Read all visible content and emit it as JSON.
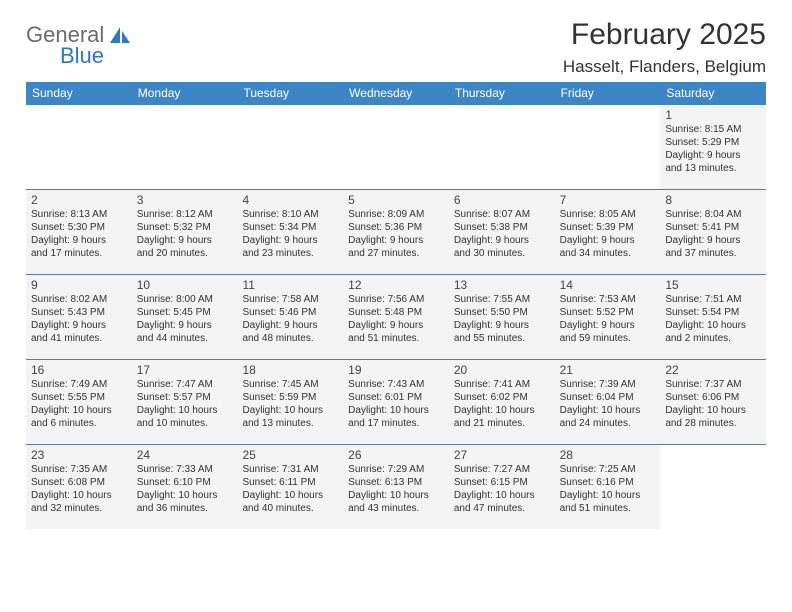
{
  "logo": {
    "part1": "General",
    "part2": "Blue",
    "gray": "#6b6b6b",
    "blue": "#2f78c4"
  },
  "title": "February 2025",
  "location": "Hasselt, Flanders, Belgium",
  "header_bg": "#3d86c6",
  "cell_bg": "#f3f3f3",
  "divider_color": "#5a7a9a",
  "page_bg": "#ffffff",
  "text_color": "#333333",
  "weekdays": [
    "Sunday",
    "Monday",
    "Tuesday",
    "Wednesday",
    "Thursday",
    "Friday",
    "Saturday"
  ],
  "weeks": [
    [
      null,
      null,
      null,
      null,
      null,
      null,
      {
        "n": "1",
        "sunrise": "Sunrise: 8:15 AM",
        "sunset": "Sunset: 5:29 PM",
        "dl1": "Daylight: 9 hours",
        "dl2": "and 13 minutes."
      }
    ],
    [
      {
        "n": "2",
        "sunrise": "Sunrise: 8:13 AM",
        "sunset": "Sunset: 5:30 PM",
        "dl1": "Daylight: 9 hours",
        "dl2": "and 17 minutes."
      },
      {
        "n": "3",
        "sunrise": "Sunrise: 8:12 AM",
        "sunset": "Sunset: 5:32 PM",
        "dl1": "Daylight: 9 hours",
        "dl2": "and 20 minutes."
      },
      {
        "n": "4",
        "sunrise": "Sunrise: 8:10 AM",
        "sunset": "Sunset: 5:34 PM",
        "dl1": "Daylight: 9 hours",
        "dl2": "and 23 minutes."
      },
      {
        "n": "5",
        "sunrise": "Sunrise: 8:09 AM",
        "sunset": "Sunset: 5:36 PM",
        "dl1": "Daylight: 9 hours",
        "dl2": "and 27 minutes."
      },
      {
        "n": "6",
        "sunrise": "Sunrise: 8:07 AM",
        "sunset": "Sunset: 5:38 PM",
        "dl1": "Daylight: 9 hours",
        "dl2": "and 30 minutes."
      },
      {
        "n": "7",
        "sunrise": "Sunrise: 8:05 AM",
        "sunset": "Sunset: 5:39 PM",
        "dl1": "Daylight: 9 hours",
        "dl2": "and 34 minutes."
      },
      {
        "n": "8",
        "sunrise": "Sunrise: 8:04 AM",
        "sunset": "Sunset: 5:41 PM",
        "dl1": "Daylight: 9 hours",
        "dl2": "and 37 minutes."
      }
    ],
    [
      {
        "n": "9",
        "sunrise": "Sunrise: 8:02 AM",
        "sunset": "Sunset: 5:43 PM",
        "dl1": "Daylight: 9 hours",
        "dl2": "and 41 minutes."
      },
      {
        "n": "10",
        "sunrise": "Sunrise: 8:00 AM",
        "sunset": "Sunset: 5:45 PM",
        "dl1": "Daylight: 9 hours",
        "dl2": "and 44 minutes."
      },
      {
        "n": "11",
        "sunrise": "Sunrise: 7:58 AM",
        "sunset": "Sunset: 5:46 PM",
        "dl1": "Daylight: 9 hours",
        "dl2": "and 48 minutes."
      },
      {
        "n": "12",
        "sunrise": "Sunrise: 7:56 AM",
        "sunset": "Sunset: 5:48 PM",
        "dl1": "Daylight: 9 hours",
        "dl2": "and 51 minutes."
      },
      {
        "n": "13",
        "sunrise": "Sunrise: 7:55 AM",
        "sunset": "Sunset: 5:50 PM",
        "dl1": "Daylight: 9 hours",
        "dl2": "and 55 minutes."
      },
      {
        "n": "14",
        "sunrise": "Sunrise: 7:53 AM",
        "sunset": "Sunset: 5:52 PM",
        "dl1": "Daylight: 9 hours",
        "dl2": "and 59 minutes."
      },
      {
        "n": "15",
        "sunrise": "Sunrise: 7:51 AM",
        "sunset": "Sunset: 5:54 PM",
        "dl1": "Daylight: 10 hours",
        "dl2": "and 2 minutes."
      }
    ],
    [
      {
        "n": "16",
        "sunrise": "Sunrise: 7:49 AM",
        "sunset": "Sunset: 5:55 PM",
        "dl1": "Daylight: 10 hours",
        "dl2": "and 6 minutes."
      },
      {
        "n": "17",
        "sunrise": "Sunrise: 7:47 AM",
        "sunset": "Sunset: 5:57 PM",
        "dl1": "Daylight: 10 hours",
        "dl2": "and 10 minutes."
      },
      {
        "n": "18",
        "sunrise": "Sunrise: 7:45 AM",
        "sunset": "Sunset: 5:59 PM",
        "dl1": "Daylight: 10 hours",
        "dl2": "and 13 minutes."
      },
      {
        "n": "19",
        "sunrise": "Sunrise: 7:43 AM",
        "sunset": "Sunset: 6:01 PM",
        "dl1": "Daylight: 10 hours",
        "dl2": "and 17 minutes."
      },
      {
        "n": "20",
        "sunrise": "Sunrise: 7:41 AM",
        "sunset": "Sunset: 6:02 PM",
        "dl1": "Daylight: 10 hours",
        "dl2": "and 21 minutes."
      },
      {
        "n": "21",
        "sunrise": "Sunrise: 7:39 AM",
        "sunset": "Sunset: 6:04 PM",
        "dl1": "Daylight: 10 hours",
        "dl2": "and 24 minutes."
      },
      {
        "n": "22",
        "sunrise": "Sunrise: 7:37 AM",
        "sunset": "Sunset: 6:06 PM",
        "dl1": "Daylight: 10 hours",
        "dl2": "and 28 minutes."
      }
    ],
    [
      {
        "n": "23",
        "sunrise": "Sunrise: 7:35 AM",
        "sunset": "Sunset: 6:08 PM",
        "dl1": "Daylight: 10 hours",
        "dl2": "and 32 minutes."
      },
      {
        "n": "24",
        "sunrise": "Sunrise: 7:33 AM",
        "sunset": "Sunset: 6:10 PM",
        "dl1": "Daylight: 10 hours",
        "dl2": "and 36 minutes."
      },
      {
        "n": "25",
        "sunrise": "Sunrise: 7:31 AM",
        "sunset": "Sunset: 6:11 PM",
        "dl1": "Daylight: 10 hours",
        "dl2": "and 40 minutes."
      },
      {
        "n": "26",
        "sunrise": "Sunrise: 7:29 AM",
        "sunset": "Sunset: 6:13 PM",
        "dl1": "Daylight: 10 hours",
        "dl2": "and 43 minutes."
      },
      {
        "n": "27",
        "sunrise": "Sunrise: 7:27 AM",
        "sunset": "Sunset: 6:15 PM",
        "dl1": "Daylight: 10 hours",
        "dl2": "and 47 minutes."
      },
      {
        "n": "28",
        "sunrise": "Sunrise: 7:25 AM",
        "sunset": "Sunset: 6:16 PM",
        "dl1": "Daylight: 10 hours",
        "dl2": "and 51 minutes."
      },
      null
    ]
  ]
}
